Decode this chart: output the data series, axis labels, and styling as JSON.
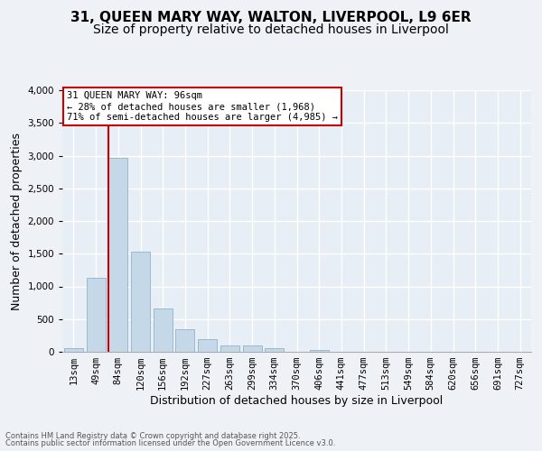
{
  "title_line1": "31, QUEEN MARY WAY, WALTON, LIVERPOOL, L9 6ER",
  "title_line2": "Size of property relative to detached houses in Liverpool",
  "xlabel": "Distribution of detached houses by size in Liverpool",
  "ylabel": "Number of detached properties",
  "annotation_title": "31 QUEEN MARY WAY: 96sqm",
  "annotation_line1": "← 28% of detached houses are smaller (1,968)",
  "annotation_line2": "71% of semi-detached houses are larger (4,985) →",
  "footer_line1": "Contains HM Land Registry data © Crown copyright and database right 2025.",
  "footer_line2": "Contains public sector information licensed under the Open Government Licence v3.0.",
  "bar_color": "#c5d8e8",
  "bar_edge_color": "#9ab8cf",
  "annotation_box_color": "#cc0000",
  "property_line_color": "#cc0000",
  "categories": [
    "13sqm",
    "49sqm",
    "84sqm",
    "120sqm",
    "156sqm",
    "192sqm",
    "227sqm",
    "263sqm",
    "299sqm",
    "334sqm",
    "370sqm",
    "406sqm",
    "441sqm",
    "477sqm",
    "513sqm",
    "549sqm",
    "584sqm",
    "620sqm",
    "656sqm",
    "691sqm",
    "727sqm"
  ],
  "values": [
    50,
    1130,
    2970,
    1530,
    660,
    340,
    200,
    90,
    90,
    50,
    0,
    25,
    0,
    0,
    0,
    0,
    0,
    0,
    0,
    0,
    0
  ],
  "property_line_x": 2.0,
  "ylim": [
    0,
    4000
  ],
  "yticks": [
    0,
    500,
    1000,
    1500,
    2000,
    2500,
    3000,
    3500,
    4000
  ],
  "background_color": "#eef2f7",
  "plot_background": "#e8eef5",
  "grid_color": "#ffffff",
  "title_fontsize": 11,
  "subtitle_fontsize": 10,
  "axis_label_fontsize": 9,
  "tick_fontsize": 7.5,
  "annotation_fontsize": 7.5
}
